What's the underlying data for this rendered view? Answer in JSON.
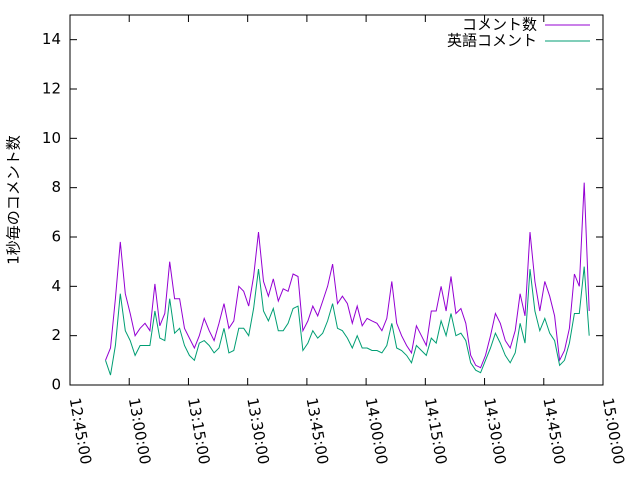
{
  "chart_data": {
    "type": "line",
    "ylabel": "1秒毎のコメント数",
    "xlim": [
      "12:45:00",
      "15:00:00"
    ],
    "xticks": [
      "12:45:00",
      "13:00:00",
      "13:15:00",
      "13:30:00",
      "13:45:00",
      "14:00:00",
      "14:15:00",
      "14:30:00",
      "14:45:00",
      "15:00:00"
    ],
    "ylim": [
      0,
      15
    ],
    "yticks": [
      0,
      2,
      4,
      6,
      8,
      10,
      12,
      14
    ],
    "legend": "top-right",
    "x": [
      "12:54:00",
      "12:55:15",
      "12:56:30",
      "12:57:45",
      "12:59:00",
      "13:00:15",
      "13:01:30",
      "13:02:45",
      "13:04:00",
      "13:05:15",
      "13:06:30",
      "13:07:45",
      "13:09:00",
      "13:10:15",
      "13:11:30",
      "13:12:45",
      "13:14:00",
      "13:15:15",
      "13:16:30",
      "13:17:45",
      "13:19:00",
      "13:20:15",
      "13:21:30",
      "13:22:45",
      "13:24:00",
      "13:25:15",
      "13:26:30",
      "13:27:45",
      "13:29:00",
      "13:30:15",
      "13:31:30",
      "13:32:45",
      "13:34:00",
      "13:35:15",
      "13:36:30",
      "13:37:45",
      "13:39:00",
      "13:40:15",
      "13:41:30",
      "13:42:45",
      "13:44:00",
      "13:45:15",
      "13:46:30",
      "13:47:45",
      "13:49:00",
      "13:50:15",
      "13:51:30",
      "13:52:45",
      "13:54:00",
      "13:55:15",
      "13:56:30",
      "13:57:45",
      "13:59:00",
      "14:00:15",
      "14:01:30",
      "14:02:45",
      "14:04:00",
      "14:05:15",
      "14:06:30",
      "14:07:45",
      "14:09:00",
      "14:10:15",
      "14:11:30",
      "14:12:45",
      "14:14:00",
      "14:15:15",
      "14:16:30",
      "14:17:45",
      "14:19:00",
      "14:20:15",
      "14:21:30",
      "14:22:45",
      "14:24:00",
      "14:25:15",
      "14:26:30",
      "14:27:45",
      "14:29:00",
      "14:30:15",
      "14:31:30",
      "14:32:45",
      "14:34:00",
      "14:35:15",
      "14:36:30",
      "14:37:45",
      "14:39:00",
      "14:40:15",
      "14:41:30",
      "14:42:45",
      "14:44:00",
      "14:45:15",
      "14:46:30",
      "14:47:45",
      "14:49:00",
      "14:50:15",
      "14:51:30",
      "14:52:45",
      "14:54:00",
      "14:55:15",
      "14:56:30"
    ],
    "series": [
      {
        "name": "コメント数",
        "color": "#9400d3",
        "values": [
          1.0,
          1.5,
          3.5,
          5.8,
          3.7,
          2.9,
          2.0,
          2.3,
          2.5,
          2.2,
          4.1,
          2.4,
          2.9,
          5.0,
          3.5,
          3.5,
          2.3,
          1.9,
          1.5,
          2.0,
          2.7,
          2.2,
          1.8,
          2.5,
          3.3,
          2.3,
          2.6,
          4.0,
          3.8,
          3.2,
          4.4,
          6.2,
          4.2,
          3.6,
          4.3,
          3.4,
          3.9,
          3.8,
          4.5,
          4.4,
          2.2,
          2.6,
          3.2,
          2.8,
          3.4,
          4.0,
          4.9,
          3.3,
          3.6,
          3.3,
          2.5,
          3.2,
          2.4,
          2.7,
          2.6,
          2.5,
          2.2,
          2.7,
          4.2,
          2.5,
          2.0,
          1.6,
          1.3,
          2.4,
          2.0,
          1.6,
          3.0,
          3.0,
          4.0,
          3.0,
          4.4,
          2.9,
          3.1,
          2.5,
          1.2,
          0.8,
          0.7,
          1.2,
          2.0,
          2.9,
          2.5,
          1.8,
          1.5,
          2.2,
          3.7,
          2.8,
          6.2,
          4.2,
          3.0,
          4.2,
          3.6,
          2.8,
          1.0,
          1.4,
          2.3,
          4.5,
          4.0,
          8.2,
          3.0
        ]
      },
      {
        "name": "英語コメント",
        "color": "#009e73",
        "values": [
          1.0,
          0.4,
          1.6,
          3.7,
          2.2,
          1.8,
          1.2,
          1.6,
          1.6,
          1.6,
          3.0,
          1.9,
          1.8,
          3.5,
          2.1,
          2.3,
          1.6,
          1.2,
          1.0,
          1.7,
          1.8,
          1.6,
          1.3,
          1.5,
          2.3,
          1.3,
          1.4,
          2.3,
          2.3,
          2.0,
          3.1,
          4.7,
          3.0,
          2.6,
          3.1,
          2.2,
          2.2,
          2.5,
          3.1,
          3.2,
          1.4,
          1.7,
          2.2,
          1.9,
          2.1,
          2.6,
          3.3,
          2.3,
          2.2,
          1.9,
          1.5,
          2.0,
          1.5,
          1.5,
          1.4,
          1.4,
          1.3,
          1.6,
          2.5,
          1.5,
          1.4,
          1.2,
          0.9,
          1.6,
          1.4,
          1.2,
          1.9,
          1.7,
          2.6,
          2.0,
          2.9,
          2.0,
          2.1,
          1.8,
          0.9,
          0.6,
          0.5,
          1.0,
          1.5,
          2.1,
          1.7,
          1.2,
          0.9,
          1.3,
          2.5,
          1.7,
          4.7,
          3.0,
          2.2,
          2.7,
          2.1,
          1.8,
          0.8,
          1.0,
          1.7,
          2.9,
          2.9,
          4.8,
          2.0
        ]
      }
    ]
  }
}
